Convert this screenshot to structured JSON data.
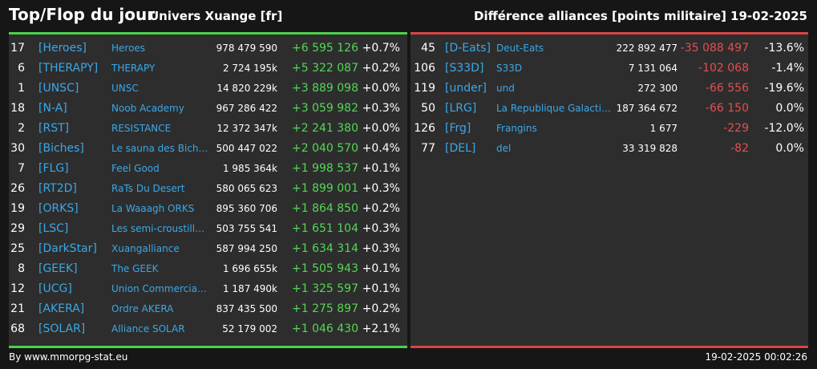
{
  "header": {
    "title": "Top/Flop du jour",
    "universe": "Univers Xuange [fr]",
    "subtitle": "Différence alliances [points militaire]",
    "date": "19-02-2025"
  },
  "colors": {
    "positive": "#55d655",
    "negative": "#e05050",
    "link": "#3aa8e8",
    "top_border": "#4cd04c",
    "flop_border": "#d94545"
  },
  "top": [
    {
      "rank": "17",
      "tag": "[Heroes]",
      "name": "Heroes",
      "points": "978 479 590",
      "diff": "+6 595 126",
      "pct": "+0.7%"
    },
    {
      "rank": "6",
      "tag": "[THERAPY]",
      "name": "THERAPY",
      "points": "2 724 195k",
      "diff": "+5 322 087",
      "pct": "+0.2%"
    },
    {
      "rank": "1",
      "tag": "[UNSC]",
      "name": "UNSC",
      "points": "14 820 229k",
      "diff": "+3 889 098",
      "pct": "+0.0%"
    },
    {
      "rank": "18",
      "tag": "[N-A]",
      "name": "Noob Academy",
      "points": "967 286 422",
      "diff": "+3 059 982",
      "pct": "+0.3%"
    },
    {
      "rank": "2",
      "tag": "[RST]",
      "name": "RESISTANCE",
      "points": "12 372 347k",
      "diff": "+2 241 380",
      "pct": "+0.0%"
    },
    {
      "rank": "30",
      "tag": "[Biches]",
      "name": "Le sauna des Biches",
      "points": "500 447 022",
      "diff": "+2 040 570",
      "pct": "+0.4%"
    },
    {
      "rank": "7",
      "tag": "[FLG]",
      "name": "Feel Good",
      "points": "1 985 364k",
      "diff": "+1 998 537",
      "pct": "+0.1%"
    },
    {
      "rank": "26",
      "tag": "[RT2D]",
      "name": "RaTs Du Desert",
      "points": "580 065 623",
      "diff": "+1 899 001",
      "pct": "+0.3%"
    },
    {
      "rank": "19",
      "tag": "[ORKS]",
      "name": "La Waaagh ORKS",
      "points": "895 360 706",
      "diff": "+1 864 850",
      "pct": "+0.2%"
    },
    {
      "rank": "29",
      "tag": "[LSC]",
      "name": "Les semi-croustilla...",
      "points": "503 755 541",
      "diff": "+1 651 104",
      "pct": "+0.3%"
    },
    {
      "rank": "25",
      "tag": "[DarkStar]",
      "name": "Xuangalliance",
      "points": "587 994 250",
      "diff": "+1 634 314",
      "pct": "+0.3%"
    },
    {
      "rank": "8",
      "tag": "[GEEK]",
      "name": "The GEEK",
      "points": "1 696 655k",
      "diff": "+1 505 943",
      "pct": "+0.1%"
    },
    {
      "rank": "12",
      "tag": "[UCG]",
      "name": "Union Commerciale...",
      "points": "1 187 490k",
      "diff": "+1 325 597",
      "pct": "+0.1%"
    },
    {
      "rank": "21",
      "tag": "[AKERA]",
      "name": "Ordre AKERA",
      "points": "837 435 500",
      "diff": "+1 275 897",
      "pct": "+0.2%"
    },
    {
      "rank": "68",
      "tag": "[SOLAR]",
      "name": "Alliance SOLAR",
      "points": "52 179 002",
      "diff": "+1 046 430",
      "pct": "+2.1%"
    }
  ],
  "flop": [
    {
      "rank": "45",
      "tag": "[D-Eats]",
      "name": "Deut-Eats",
      "points": "222 892 477",
      "diff": "-35 088 497",
      "pct": "-13.6%"
    },
    {
      "rank": "106",
      "tag": "[S33D]",
      "name": "S33D",
      "points": "7 131 064",
      "diff": "-102 068",
      "pct": "-1.4%"
    },
    {
      "rank": "119",
      "tag": "[under]",
      "name": "und",
      "points": "272 300",
      "diff": "-66 556",
      "pct": "-19.6%"
    },
    {
      "rank": "50",
      "tag": "[LRG]",
      "name": "La Republique Galactique",
      "points": "187 364 672",
      "diff": "-66 150",
      "pct": "0.0%"
    },
    {
      "rank": "126",
      "tag": "[Frg]",
      "name": "Frangins",
      "points": "1 677",
      "diff": "-229",
      "pct": "-12.0%"
    },
    {
      "rank": "77",
      "tag": "[DEL]",
      "name": "del",
      "points": "33 319 828",
      "diff": "-82",
      "pct": "0.0%"
    }
  ],
  "footer": {
    "source": "By www.mmorpg-stat.eu",
    "timestamp": "19-02-2025 00:02:26"
  }
}
